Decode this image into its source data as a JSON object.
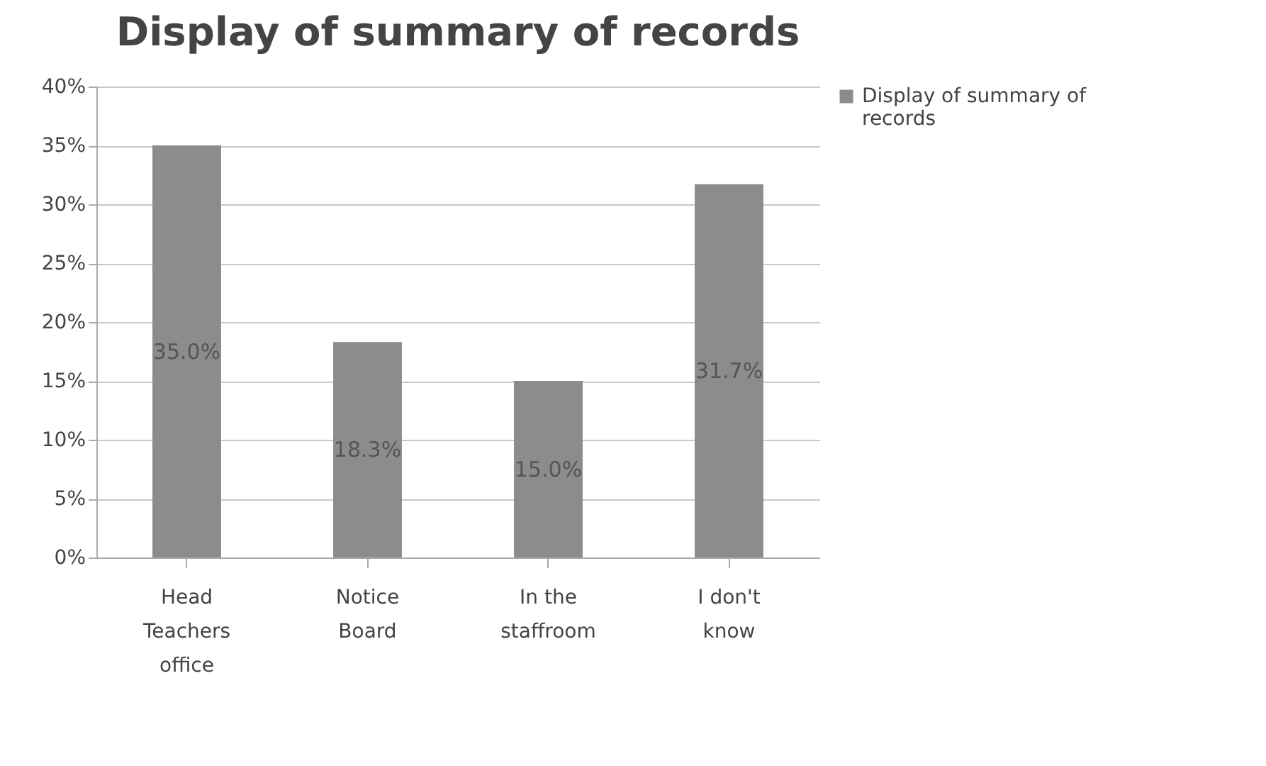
{
  "chart_data": {
    "type": "bar",
    "title": "Display of summary of records",
    "categories": [
      "Head Teachers office",
      "Notice Board",
      "In the staffroom",
      "I don't know"
    ],
    "series": [
      {
        "name": "Display of summary of records",
        "color": "#8c8c8c",
        "values": [
          35.0,
          18.3,
          15.0,
          31.7
        ],
        "value_labels": [
          "35.0%",
          "18.3%",
          "15.0%",
          "31.7%"
        ]
      }
    ],
    "ylim": [
      0,
      40
    ],
    "yticks": [
      {
        "value": 0,
        "label": "0%"
      },
      {
        "value": 5,
        "label": "5%"
      },
      {
        "value": 10,
        "label": "10%"
      },
      {
        "value": 15,
        "label": "15%"
      },
      {
        "value": 20,
        "label": "20%"
      },
      {
        "value": 25,
        "label": "25%"
      },
      {
        "value": 30,
        "label": "30%"
      },
      {
        "value": 35,
        "label": "35%"
      },
      {
        "value": 40,
        "label": "40%"
      }
    ],
    "grid": "y",
    "legend": "right"
  }
}
